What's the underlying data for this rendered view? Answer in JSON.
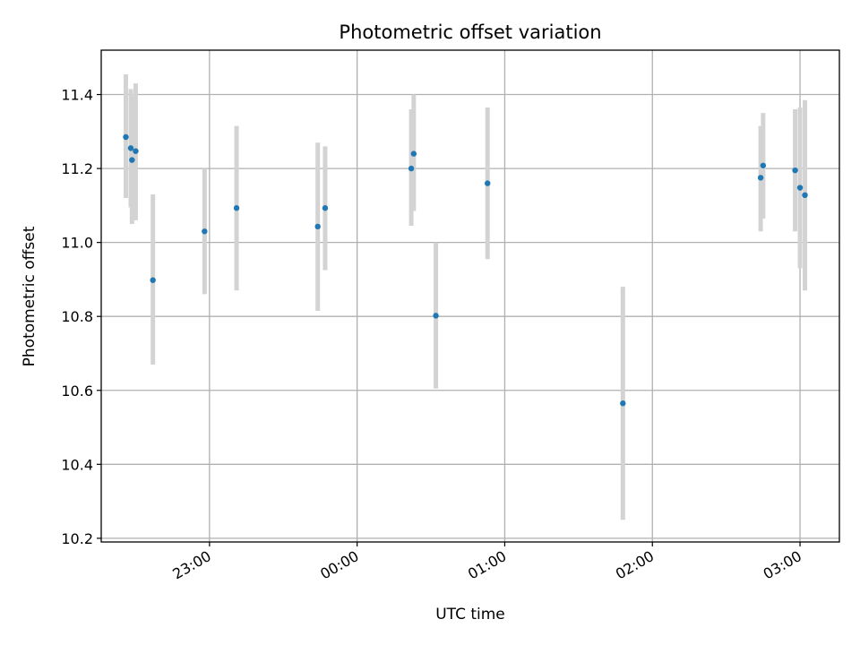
{
  "chart_data": {
    "type": "scatter",
    "title": "Photometric offset variation",
    "xlabel": "UTC time",
    "ylabel": "Photometric offset",
    "x_unit": "UTC",
    "xlim": [
      "22:16",
      "03:16"
    ],
    "ylim": [
      10.19,
      11.52
    ],
    "grid": true,
    "x_ticks": [
      "23:00",
      "00:00",
      "01:00",
      "02:00",
      "03:00"
    ],
    "y_ticks": [
      "10.2",
      "10.4",
      "10.6",
      "10.8",
      "11.0",
      "11.2",
      "11.4"
    ],
    "colors": {
      "points": "#1f77b4",
      "errorbars": "#d3d3d3",
      "grid": "#b0b0b0"
    },
    "series": [
      {
        "points": [
          {
            "x": "22:26",
            "y": 11.285,
            "lo": 11.12,
            "hi": 11.455
          },
          {
            "x": "22:28",
            "y": 11.255,
            "lo": 11.095,
            "hi": 11.415
          },
          {
            "x": "22:28:30",
            "y": 11.223,
            "lo": 11.05,
            "hi": 11.395
          },
          {
            "x": "22:30",
            "y": 11.247,
            "lo": 11.06,
            "hi": 11.43
          },
          {
            "x": "22:37",
            "y": 10.898,
            "lo": 10.67,
            "hi": 11.13
          },
          {
            "x": "22:58",
            "y": 11.03,
            "lo": 10.86,
            "hi": 11.2
          },
          {
            "x": "23:11",
            "y": 11.093,
            "lo": 10.87,
            "hi": 11.315
          },
          {
            "x": "23:44",
            "y": 11.043,
            "lo": 10.815,
            "hi": 11.27
          },
          {
            "x": "23:47",
            "y": 11.093,
            "lo": 10.925,
            "hi": 11.26
          },
          {
            "x": "00:22",
            "y": 11.2,
            "lo": 11.045,
            "hi": 11.36
          },
          {
            "x": "00:23",
            "y": 11.24,
            "lo": 11.085,
            "hi": 11.4
          },
          {
            "x": "00:32",
            "y": 10.802,
            "lo": 10.605,
            "hi": 11.0
          },
          {
            "x": "00:53",
            "y": 11.16,
            "lo": 10.955,
            "hi": 11.365
          },
          {
            "x": "01:48",
            "y": 10.565,
            "lo": 10.25,
            "hi": 10.88
          },
          {
            "x": "02:44",
            "y": 11.175,
            "lo": 11.03,
            "hi": 11.315
          },
          {
            "x": "02:45",
            "y": 11.208,
            "lo": 11.065,
            "hi": 11.35
          },
          {
            "x": "02:58",
            "y": 11.195,
            "lo": 11.03,
            "hi": 11.36
          },
          {
            "x": "03:00",
            "y": 11.148,
            "lo": 10.93,
            "hi": 11.365
          },
          {
            "x": "03:02",
            "y": 11.128,
            "lo": 10.87,
            "hi": 11.385
          }
        ]
      }
    ]
  }
}
